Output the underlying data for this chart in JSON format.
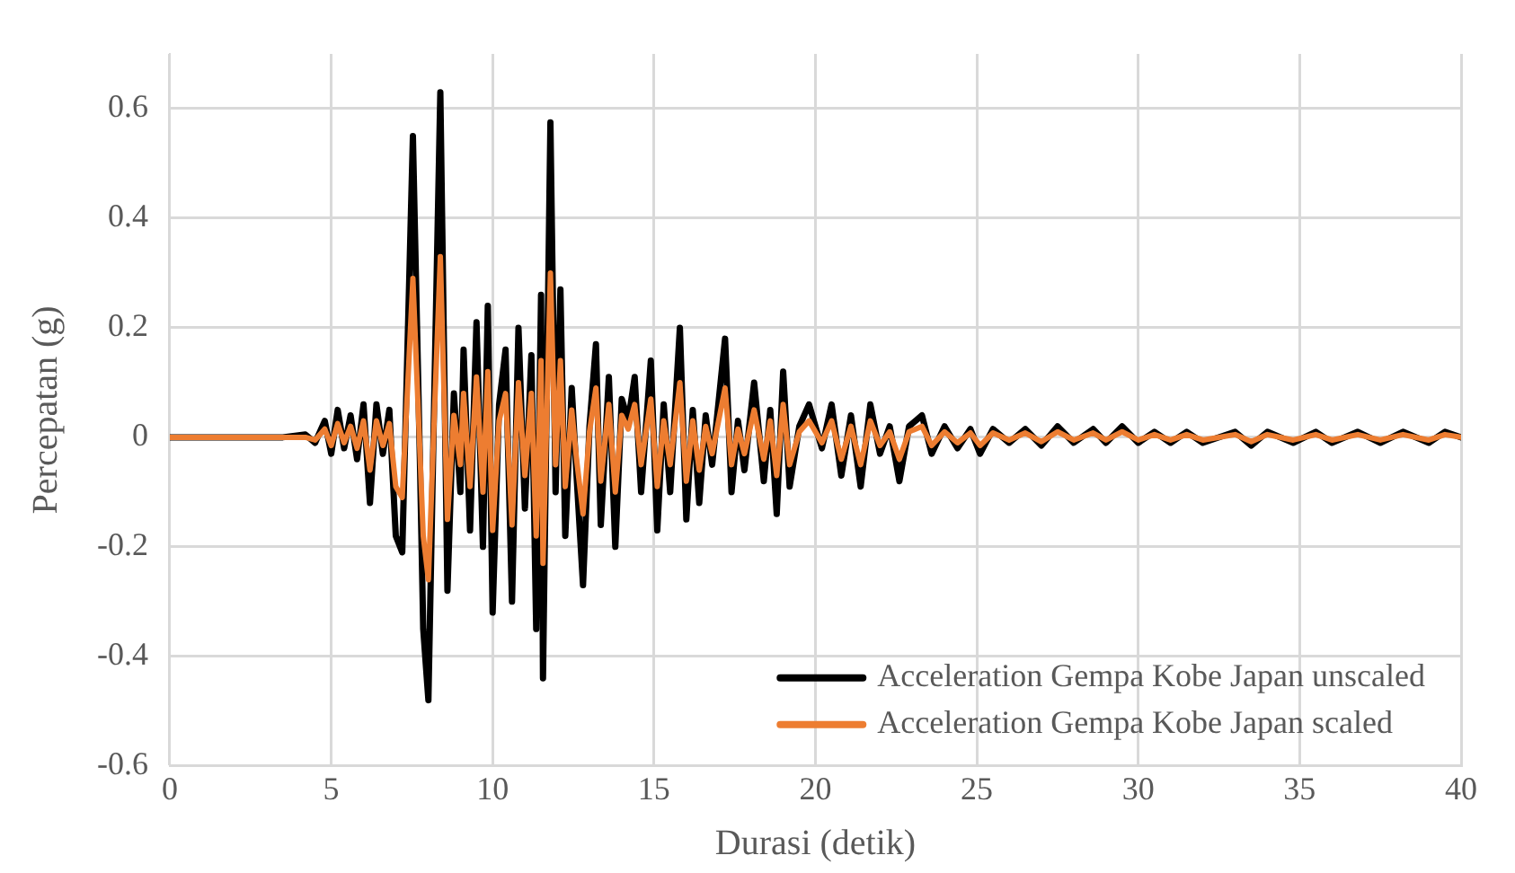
{
  "chart_data": {
    "type": "line",
    "xlabel": "Durasi (detik)",
    "ylabel": "Percepatan (g)",
    "xlim": [
      0,
      40
    ],
    "xticks": [
      0,
      5,
      10,
      15,
      20,
      25,
      30,
      35,
      40
    ],
    "ylim": [
      -0.6,
      0.7
    ],
    "yticks": [
      -0.6,
      -0.4,
      -0.2,
      0,
      0.2,
      0.4,
      0.6
    ],
    "grid": true,
    "legend": "bottom right",
    "marker": "none",
    "line_style": "solid",
    "x": [
      0,
      3.5,
      4.2,
      4.5,
      4.8,
      5.0,
      5.2,
      5.4,
      5.6,
      5.8,
      6.0,
      6.2,
      6.4,
      6.6,
      6.8,
      7.0,
      7.2,
      7.53,
      7.75,
      7.85,
      8.01,
      8.2,
      8.38,
      8.6,
      8.8,
      9.0,
      9.1,
      9.3,
      9.5,
      9.7,
      9.85,
      10.0,
      10.2,
      10.4,
      10.6,
      10.8,
      11.0,
      11.2,
      11.35,
      11.5,
      11.56,
      11.79,
      11.95,
      12.1,
      12.25,
      12.45,
      12.6,
      12.8,
      13.0,
      13.2,
      13.35,
      13.6,
      13.8,
      14.0,
      14.2,
      14.4,
      14.6,
      14.9,
      15.1,
      15.3,
      15.5,
      15.8,
      16.0,
      16.2,
      16.4,
      16.6,
      16.8,
      17.2,
      17.4,
      17.6,
      17.8,
      18.1,
      18.4,
      18.6,
      18.8,
      19.0,
      19.2,
      19.5,
      19.8,
      20.2,
      20.5,
      20.8,
      21.1,
      21.4,
      21.7,
      22.0,
      22.3,
      22.6,
      22.9,
      23.3,
      23.6,
      24.0,
      24.4,
      24.8,
      25.1,
      25.5,
      26.0,
      26.5,
      27.0,
      27.5,
      28.0,
      28.6,
      29.0,
      29.5,
      30.0,
      30.5,
      31.0,
      31.5,
      32.0,
      33.0,
      33.5,
      34.0,
      34.8,
      35.5,
      36.0,
      36.8,
      37.5,
      38.2,
      39.0,
      39.5,
      40
    ],
    "series": [
      {
        "name": "Acceleration Gempa Kobe Japan unscaled",
        "color": "#000000",
        "values": [
          0,
          0,
          0.005,
          -0.01,
          0.03,
          -0.03,
          0.05,
          -0.02,
          0.04,
          -0.04,
          0.06,
          -0.12,
          0.06,
          -0.03,
          0.05,
          -0.18,
          -0.21,
          0.55,
          -0.05,
          -0.35,
          -0.48,
          0.1,
          0.63,
          -0.28,
          0.08,
          -0.1,
          0.16,
          -0.17,
          0.21,
          -0.2,
          0.24,
          -0.32,
          0.06,
          0.16,
          -0.3,
          0.2,
          -0.13,
          0.15,
          -0.35,
          0.26,
          -0.44,
          0.575,
          -0.1,
          0.27,
          -0.18,
          0.09,
          -0.07,
          -0.27,
          0.02,
          0.17,
          -0.16,
          0.11,
          -0.2,
          0.07,
          0.03,
          0.11,
          -0.1,
          0.14,
          -0.17,
          0.06,
          -0.1,
          0.2,
          -0.15,
          0.05,
          -0.12,
          0.04,
          -0.05,
          0.18,
          -0.1,
          0.03,
          -0.06,
          0.1,
          -0.08,
          0.05,
          -0.14,
          0.12,
          -0.09,
          0.02,
          0.06,
          -0.02,
          0.06,
          -0.07,
          0.04,
          -0.09,
          0.06,
          -0.03,
          0.02,
          -0.08,
          0.02,
          0.04,
          -0.03,
          0.02,
          -0.02,
          0.015,
          -0.03,
          0.015,
          -0.01,
          0.015,
          -0.015,
          0.02,
          -0.01,
          0.015,
          -0.01,
          0.02,
          -0.01,
          0.01,
          -0.01,
          0.01,
          -0.01,
          0.01,
          -0.015,
          0.01,
          -0.01,
          0.01,
          -0.01,
          0.01,
          -0.01,
          0.01,
          -0.01,
          0.01,
          0
        ]
      },
      {
        "name": "Acceleration Gempa Kobe Japan scaled",
        "color": "#ed7d31",
        "values": [
          0,
          0,
          0,
          -0.005,
          0.015,
          -0.015,
          0.025,
          -0.01,
          0.02,
          -0.02,
          0.03,
          -0.06,
          0.03,
          -0.015,
          0.025,
          -0.09,
          -0.11,
          0.29,
          -0.03,
          -0.18,
          -0.26,
          0.05,
          0.33,
          -0.15,
          0.04,
          -0.05,
          0.08,
          -0.09,
          0.11,
          -0.1,
          0.12,
          -0.17,
          0.03,
          0.08,
          -0.16,
          0.1,
          -0.07,
          0.08,
          -0.18,
          0.14,
          -0.23,
          0.3,
          -0.05,
          0.14,
          -0.09,
          0.05,
          -0.04,
          -0.14,
          0.01,
          0.09,
          -0.08,
          0.06,
          -0.1,
          0.04,
          0.015,
          0.06,
          -0.05,
          0.07,
          -0.09,
          0.03,
          -0.05,
          0.1,
          -0.08,
          0.03,
          -0.06,
          0.02,
          -0.03,
          0.09,
          -0.05,
          0.015,
          -0.03,
          0.05,
          -0.04,
          0.03,
          -0.07,
          0.06,
          -0.05,
          0.01,
          0.03,
          -0.01,
          0.03,
          -0.04,
          0.02,
          -0.05,
          0.03,
          -0.015,
          0.01,
          -0.04,
          0.01,
          0.02,
          -0.015,
          0.01,
          -0.01,
          0.008,
          -0.015,
          0.008,
          -0.005,
          0.008,
          -0.008,
          0.01,
          -0.005,
          0.008,
          -0.005,
          0.01,
          -0.005,
          0.005,
          -0.005,
          0.005,
          -0.005,
          0.005,
          -0.008,
          0.005,
          -0.005,
          0.005,
          -0.005,
          0.005,
          -0.005,
          0.005,
          -0.005,
          0.005,
          0
        ]
      }
    ]
  }
}
